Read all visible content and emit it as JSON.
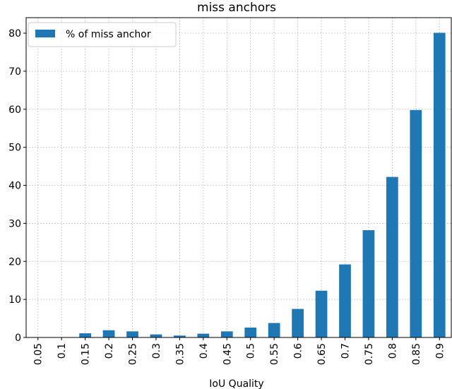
{
  "chart_data": {
    "type": "bar",
    "title": "miss anchors",
    "xlabel": "IoU Quality",
    "ylabel": "",
    "categories": [
      "0.05",
      "0.1",
      "0.15",
      "0.2",
      "0.25",
      "0.3",
      "0.35",
      "0.4",
      "0.45",
      "0.5",
      "0.55",
      "0.6",
      "0.65",
      "0.7",
      "0.75",
      "0.8",
      "0.85",
      "0.9"
    ],
    "series": [
      {
        "name": "% of miss anchor",
        "color": "#1f77b4",
        "values": [
          0.0,
          0.0,
          1.1,
          1.9,
          1.6,
          0.8,
          0.5,
          1.0,
          1.6,
          2.6,
          3.8,
          7.5,
          12.3,
          19.2,
          28.2,
          42.2,
          59.8,
          80.1
        ]
      }
    ],
    "ylim": [
      0,
      80
    ],
    "yticks": [
      0,
      10,
      20,
      30,
      40,
      50,
      60,
      70,
      80
    ],
    "grid": true,
    "legend_position": "top-left"
  }
}
